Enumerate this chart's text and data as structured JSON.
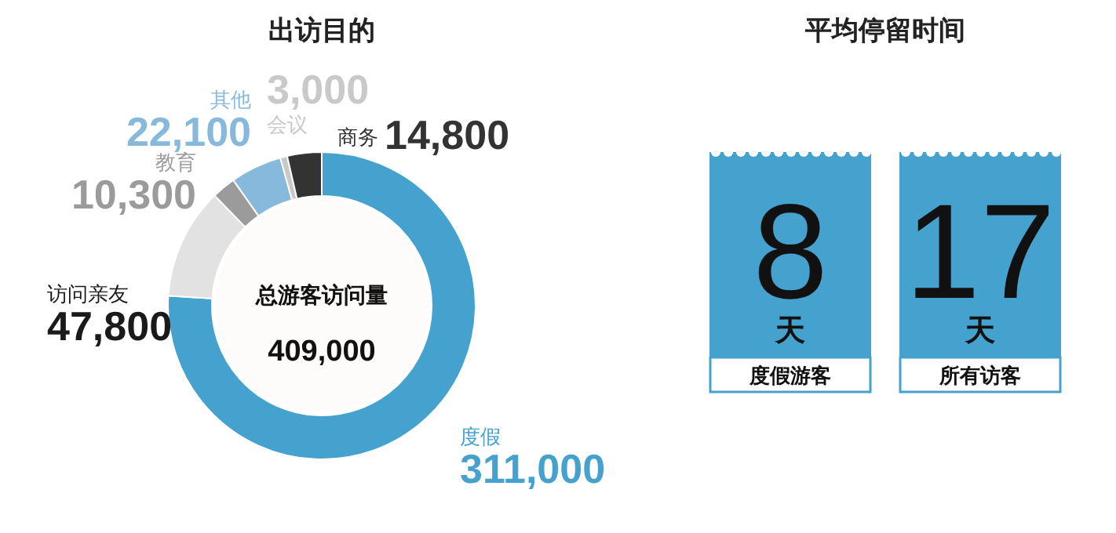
{
  "chart_data": [
    {
      "type": "donut",
      "title": "出访目的",
      "categories": [
        "度假",
        "访问亲友",
        "教育",
        "其他",
        "会议",
        "商务"
      ],
      "values": [
        311000,
        47800,
        10300,
        22100,
        3000,
        14800
      ],
      "value_labels": [
        "311,000",
        "47,800",
        "10,300",
        "22,100",
        "3,000",
        "14,800"
      ],
      "colors": [
        "#45a2cf",
        "#e2e2e2",
        "#9b9b9b",
        "#86b9db",
        "#c9c9c9",
        "#333333"
      ],
      "annotations": [
        "总游客访问量",
        "409,000"
      ]
    },
    {
      "type": "other",
      "title": "平均停留时间",
      "annotations": [
        "8",
        "天",
        "度假游客",
        "17",
        "天",
        "所有访客"
      ],
      "color": "#45a2cf"
    }
  ]
}
